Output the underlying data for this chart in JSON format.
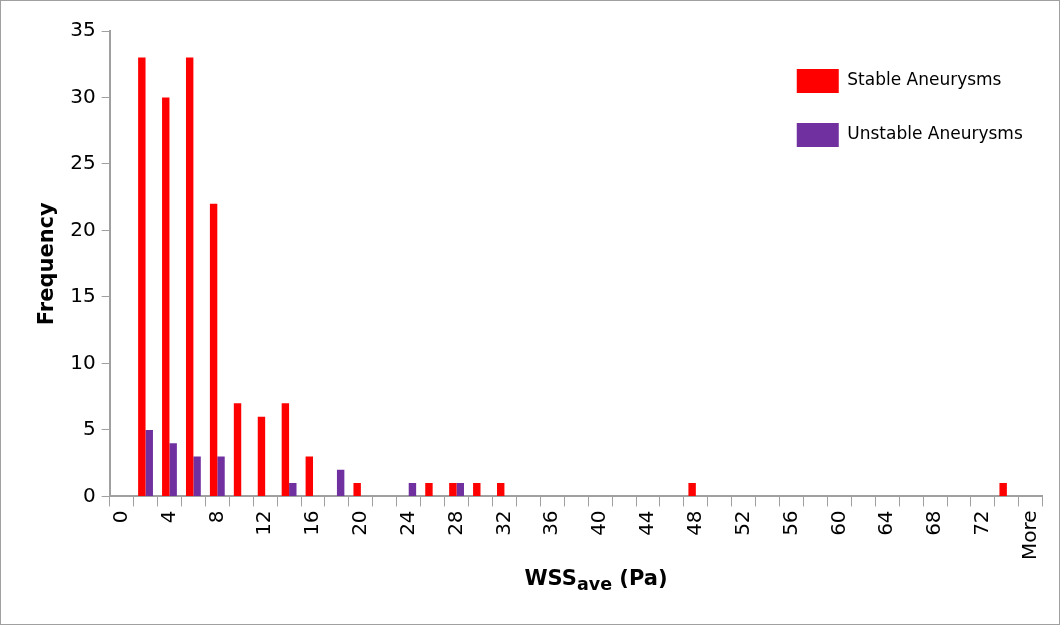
{
  "chart_data": {
    "type": "bar",
    "xlabel": "WSS$_{ave}$ (Pa)",
    "ylabel": "Frequency",
    "categories": [
      "0",
      null,
      "4",
      null,
      "8",
      null,
      "12",
      null,
      "16",
      null,
      "20",
      null,
      "24",
      null,
      "28",
      null,
      "32",
      null,
      "36",
      null,
      "40",
      null,
      "44",
      null,
      "48",
      null,
      "52",
      null,
      "56",
      null,
      "60",
      null,
      "64",
      null,
      "68",
      null,
      "72",
      null,
      "More"
    ],
    "series": [
      {
        "name": "Stable Aneurysms",
        "color": "#ff0000",
        "values": [
          0,
          33,
          30,
          33,
          22,
          7,
          6,
          7,
          3,
          0,
          1,
          0,
          0,
          1,
          1,
          1,
          1,
          0,
          0,
          0,
          0,
          0,
          0,
          0,
          1,
          0,
          0,
          0,
          0,
          0,
          0,
          0,
          0,
          0,
          0,
          0,
          0,
          1,
          0
        ]
      },
      {
        "name": "Unstable Aneurysms",
        "color": "#7030a0",
        "values": [
          0,
          5,
          4,
          3,
          3,
          0,
          0,
          1,
          0,
          2,
          0,
          0,
          1,
          0,
          1,
          0,
          0,
          0,
          0,
          0,
          0,
          0,
          0,
          0,
          0,
          0,
          0,
          0,
          0,
          0,
          0,
          0,
          0,
          0,
          0,
          0,
          0,
          0,
          0
        ]
      }
    ],
    "ylim": [
      0,
      35
    ],
    "yticks": [
      0,
      5,
      10,
      15,
      20,
      25,
      30,
      35
    ],
    "grid": false,
    "legend": "top right"
  }
}
